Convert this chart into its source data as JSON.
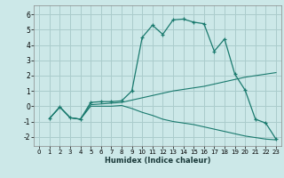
{
  "xlabel": "Humidex (Indice chaleur)",
  "bg_color": "#cce8e8",
  "grid_color": "#aacccc",
  "line_color": "#1a7a6e",
  "xlim": [
    -0.5,
    23.5
  ],
  "ylim": [
    -2.6,
    6.6
  ],
  "yticks": [
    -2,
    -1,
    0,
    1,
    2,
    3,
    4,
    5,
    6
  ],
  "xticks": [
    0,
    1,
    2,
    3,
    4,
    5,
    6,
    7,
    8,
    9,
    10,
    11,
    12,
    13,
    14,
    15,
    16,
    17,
    18,
    19,
    20,
    21,
    22,
    23
  ],
  "line1_x": [
    1,
    2,
    3,
    4,
    5,
    6,
    7,
    8,
    9,
    10,
    11,
    12,
    13,
    14,
    15,
    16,
    17,
    18,
    19,
    20,
    21,
    22,
    23
  ],
  "line1_y": [
    -0.8,
    -0.05,
    -0.75,
    -0.85,
    0.25,
    0.3,
    0.3,
    0.35,
    1.0,
    4.5,
    5.3,
    4.7,
    5.65,
    5.7,
    5.5,
    5.4,
    3.6,
    4.4,
    2.1,
    1.05,
    -0.85,
    -1.1,
    -2.15
  ],
  "line2_x": [
    1,
    2,
    3,
    4,
    5,
    6,
    7,
    8,
    9,
    10,
    11,
    12,
    13,
    14,
    15,
    16,
    17,
    18,
    19,
    20,
    21,
    22,
    23
  ],
  "line2_y": [
    -0.8,
    -0.05,
    -0.75,
    -0.85,
    0.1,
    0.15,
    0.2,
    0.25,
    0.4,
    0.55,
    0.7,
    0.85,
    1.0,
    1.1,
    1.2,
    1.3,
    1.45,
    1.6,
    1.75,
    1.9,
    2.0,
    2.1,
    2.2
  ],
  "line3_x": [
    1,
    2,
    3,
    4,
    5,
    6,
    7,
    8,
    9,
    10,
    11,
    12,
    13,
    14,
    15,
    16,
    17,
    18,
    19,
    20,
    21,
    22,
    23
  ],
  "line3_y": [
    -0.8,
    -0.05,
    -0.75,
    -0.85,
    0.0,
    0.0,
    0.0,
    0.05,
    -0.15,
    -0.4,
    -0.6,
    -0.85,
    -1.0,
    -1.1,
    -1.2,
    -1.35,
    -1.5,
    -1.65,
    -1.8,
    -1.95,
    -2.05,
    -2.15,
    -2.2
  ]
}
